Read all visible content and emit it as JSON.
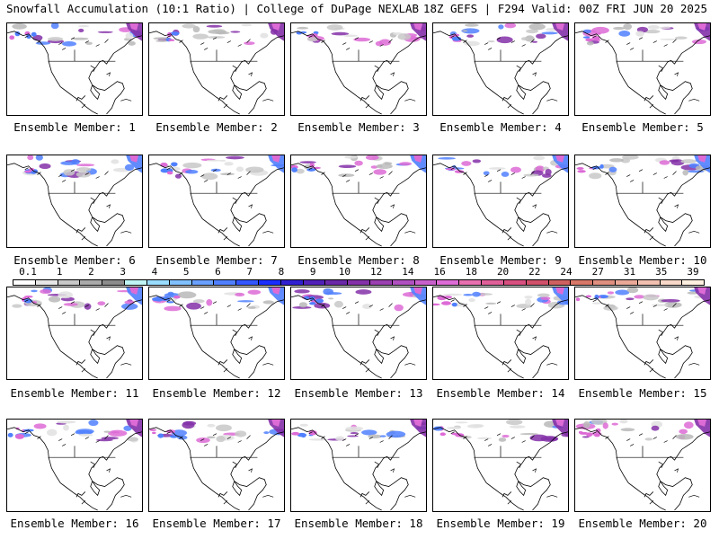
{
  "header": {
    "title_left": "Snowfall Accumulation (10:1 Ratio) | College of DuPage NEXLAB",
    "title_right": "18Z GEFS | F294 Valid: 00Z FRI JUN 20 2025"
  },
  "members": [
    "Ensemble Member: 1",
    "Ensemble Member: 2",
    "Ensemble Member: 3",
    "Ensemble Member: 4",
    "Ensemble Member: 5",
    "Ensemble Member: 6",
    "Ensemble Member: 7",
    "Ensemble Member: 8",
    "Ensemble Member: 9",
    "Ensemble Member: 10",
    "Ensemble Member: 11",
    "Ensemble Member: 12",
    "Ensemble Member: 13",
    "Ensemble Member: 14",
    "Ensemble Member: 15",
    "Ensemble Member: 16",
    "Ensemble Member: 17",
    "Ensemble Member: 18",
    "Ensemble Member: 19",
    "Ensemble Member: 20"
  ],
  "colorbar": {
    "labels": [
      "0.1",
      "1",
      "2",
      "3",
      "4",
      "5",
      "6",
      "7",
      "8",
      "9",
      "10",
      "12",
      "14",
      "16",
      "18",
      "20",
      "22",
      "24",
      "27",
      "31",
      "35",
      "39"
    ],
    "colors": [
      "#ffffff",
      "#e6e6e6",
      "#c8c8c8",
      "#aaaaaa",
      "#8c8c8c",
      "#bff5f5",
      "#99ddff",
      "#80c0ff",
      "#6aa0ff",
      "#5080ff",
      "#3355ff",
      "#1a2dff",
      "#3020d0",
      "#5020b8",
      "#6a28a8",
      "#8430a8",
      "#9a40b0",
      "#b050c0",
      "#c860cc",
      "#dd6bd6",
      "#e870b0",
      "#e0609a",
      "#d85080",
      "#d0506a",
      "#d06060",
      "#d87868",
      "#e09080",
      "#eaa898",
      "#f2c0b0",
      "#f8d8c8",
      "#fff0e0"
    ]
  },
  "colors": {
    "snow_light": "#c8c8c8",
    "snow_blue": "#5080ff",
    "snow_purple": "#8430a8",
    "snow_magenta": "#dd6bd6"
  }
}
